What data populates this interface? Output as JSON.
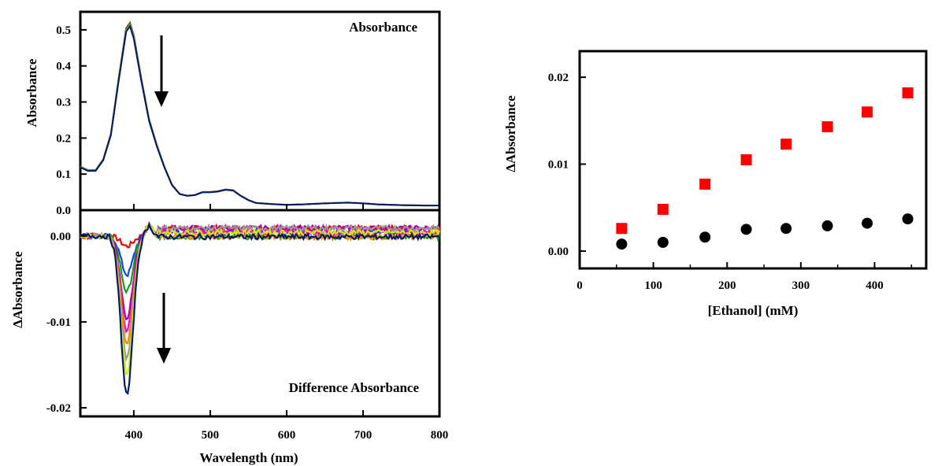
{
  "colors": {
    "red": "#ff0000",
    "blue": "#1040ff",
    "green": "#10a010",
    "purple": "#aa00aa",
    "magenta": "#ff00cc",
    "orange": "#ff8800",
    "grey": "#999999",
    "lime": "#ccee00",
    "navy": "#001a66",
    "black": "#000000"
  },
  "chart_data": [
    {
      "type": "line",
      "panel": "top-left",
      "title": "Absorbance",
      "ylabel": "Absorbance",
      "xlabel": "",
      "xlim": [
        330,
        800
      ],
      "ylim": [
        0,
        0.55
      ],
      "xticks": [
        "400",
        "500",
        "600",
        "700",
        "800"
      ],
      "yticks": [
        "0.0",
        "0.1",
        "0.2",
        "0.3",
        "0.4",
        "0.5"
      ],
      "series": [
        {
          "color": "#ff0000",
          "scale": 1.01
        },
        {
          "color": "#10a010",
          "scale": 1.005
        },
        {
          "color": "#999999",
          "scale": 0.995
        },
        {
          "color": "#001a66",
          "scale": 0.99
        }
      ],
      "x": [
        330,
        340,
        350,
        360,
        370,
        380,
        390,
        395,
        400,
        410,
        420,
        430,
        440,
        450,
        460,
        470,
        480,
        490,
        500,
        510,
        520,
        530,
        540,
        550,
        560,
        580,
        600,
        620,
        650,
        680,
        700,
        720,
        750,
        780,
        800
      ],
      "y": [
        0.12,
        0.11,
        0.11,
        0.14,
        0.21,
        0.36,
        0.5,
        0.515,
        0.48,
        0.36,
        0.25,
        0.18,
        0.12,
        0.07,
        0.045,
        0.04,
        0.042,
        0.05,
        0.05,
        0.052,
        0.057,
        0.055,
        0.04,
        0.028,
        0.02,
        0.017,
        0.015,
        0.016,
        0.019,
        0.021,
        0.019,
        0.016,
        0.014,
        0.013,
        0.013
      ],
      "annotation": "arrow-down"
    },
    {
      "type": "line",
      "panel": "bottom-left",
      "title": "Difference Absorbance",
      "ylabel": "ΔAbsorbance",
      "xlabel": "Wavelength (nm)",
      "xlim": [
        330,
        800
      ],
      "ylim": [
        -0.021,
        0.003
      ],
      "xticks": [
        "400",
        "500",
        "600",
        "700",
        "800"
      ],
      "yticks": [
        "-0.02",
        "-0.01",
        "0.00"
      ],
      "series": [
        {
          "color": "#ff0000",
          "depth": -0.0012
        },
        {
          "color": "#1040ff",
          "depth": -0.0045
        },
        {
          "color": "#10a010",
          "depth": -0.0065
        },
        {
          "color": "#aa00aa",
          "depth": -0.0095
        },
        {
          "color": "#ff00cc",
          "depth": -0.011
        },
        {
          "color": "#ff8800",
          "depth": -0.0125
        },
        {
          "color": "#999999",
          "depth": -0.0142
        },
        {
          "color": "#ccee00",
          "depth": -0.016
        },
        {
          "color": "#001a66",
          "depth": -0.0185
        }
      ],
      "annotation": "arrow-down"
    },
    {
      "type": "scatter",
      "panel": "right",
      "xlabel": "[Ethanol] (mM)",
      "ylabel": "ΔAbsorbance",
      "xlim": [
        0,
        470
      ],
      "ylim": [
        -0.002,
        0.023
      ],
      "xticks": [
        "0",
        "100",
        "200",
        "300",
        "400"
      ],
      "yticks": [
        "0.00",
        "0.01",
        "0.02"
      ],
      "series": [
        {
          "marker": "square",
          "color": "#ff0000",
          "x": [
            57,
            113,
            170,
            226,
            280,
            336,
            390,
            445
          ],
          "y": [
            0.0026,
            0.0048,
            0.0077,
            0.0105,
            0.0123,
            0.0143,
            0.016,
            0.0182
          ]
        },
        {
          "marker": "circle",
          "color": "#000000",
          "x": [
            57,
            113,
            170,
            226,
            280,
            336,
            390,
            445
          ],
          "y": [
            0.0008,
            0.001,
            0.0016,
            0.0025,
            0.0026,
            0.0029,
            0.0032,
            0.0037
          ]
        }
      ]
    }
  ]
}
